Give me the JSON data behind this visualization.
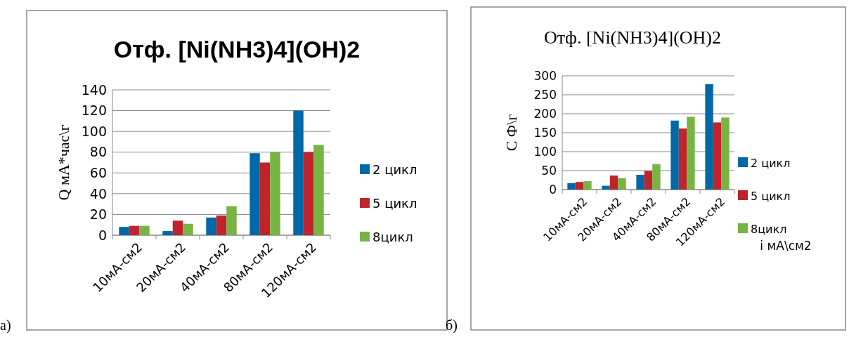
{
  "chart_data": [
    {
      "type": "bar",
      "title": "Отф. [Ni(NH3)4](OH)2",
      "ylabel": "Q  мА*час\\г",
      "annotations": [
        "а)"
      ],
      "categories": [
        "10мА-см2",
        "20мА-см2",
        "40мА-см2",
        "80мА-см2",
        "120мА-см2"
      ],
      "series": [
        {
          "name": "2 цикл",
          "color": "#0068a6",
          "values": [
            8,
            4,
            17,
            79,
            120
          ]
        },
        {
          "name": "5 цикл",
          "color": "#c0232b",
          "values": [
            9,
            14,
            19,
            70,
            80
          ]
        },
        {
          "name": "8цикл",
          "color": "#77b443",
          "values": [
            9,
            11,
            28,
            80,
            87
          ]
        }
      ],
      "ylim": [
        0,
        140
      ],
      "yticks": [
        0,
        20,
        40,
        60,
        80,
        100,
        120,
        140
      ],
      "grid": "y",
      "legend": "right"
    },
    {
      "type": "bar",
      "title": "Отф. [Ni(NH3)4](OH)2",
      "ylabel": "С  Ф\\г",
      "xlabel": "i мА\\см2",
      "annotations": [
        "б)"
      ],
      "categories": [
        "10мА-см2",
        "20мА-см2",
        "40мА-см2",
        "80мА-см2",
        "120мА-см2"
      ],
      "series": [
        {
          "name": "2 цикл",
          "color": "#0068a6",
          "values": [
            17,
            10,
            39,
            182,
            278
          ]
        },
        {
          "name": "5 цикл",
          "color": "#c0232b",
          "values": [
            20,
            37,
            49,
            161,
            177
          ]
        },
        {
          "name": "8цикл",
          "color": "#77b443",
          "values": [
            22,
            30,
            67,
            192,
            190
          ]
        }
      ],
      "ylim": [
        0,
        300
      ],
      "yticks": [
        0,
        50,
        100,
        150,
        200,
        250,
        300
      ],
      "grid": "y",
      "legend": "right"
    }
  ]
}
